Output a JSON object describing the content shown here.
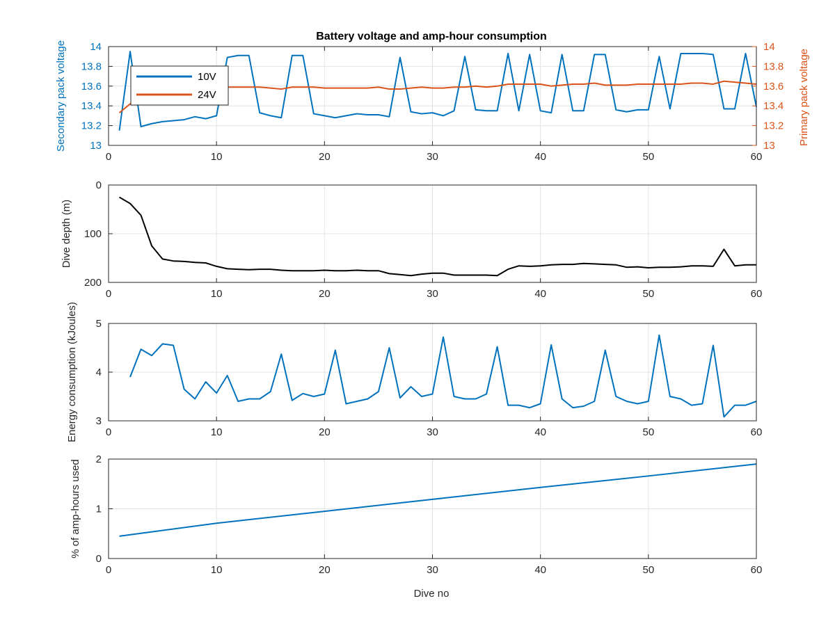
{
  "colors": {
    "blue": "#0072BD",
    "orange": "#D95319",
    "black": "#000000"
  },
  "figure": {
    "title": "Battery voltage and amp-hour consumption",
    "xlabel": "Dive no"
  },
  "chart_data": [
    {
      "type": "line",
      "title": "Battery voltage and amp-hour consumption",
      "xlabel": "",
      "ylabel": "Secondary pack voltage",
      "ylabel_right": "Primary pack voltage",
      "xlim": [
        0,
        60
      ],
      "ylim": [
        13,
        14
      ],
      "ylim_right": [
        13,
        14
      ],
      "xticks": [
        0,
        10,
        20,
        30,
        40,
        50,
        60
      ],
      "yticks": [
        13,
        13.2,
        13.4,
        13.6,
        13.8,
        14
      ],
      "yticks_right": [
        13,
        13.2,
        13.4,
        13.6,
        13.8,
        14
      ],
      "grid": true,
      "legend_position": "top-left",
      "series": [
        {
          "name": "10V",
          "axis": "left",
          "color": "#0072BD",
          "x": [
            1,
            2,
            3,
            4,
            5,
            6,
            7,
            8,
            9,
            10,
            11,
            12,
            13,
            14,
            15,
            16,
            17,
            18,
            19,
            20,
            21,
            22,
            23,
            24,
            25,
            26,
            27,
            28,
            29,
            30,
            31,
            32,
            33,
            34,
            35,
            36,
            37,
            38,
            39,
            40,
            41,
            42,
            43,
            44,
            45,
            46,
            47,
            48,
            49,
            50,
            51,
            52,
            53,
            54,
            55,
            56,
            57,
            58,
            59,
            60
          ],
          "values": [
            13.15,
            13.95,
            13.19,
            13.22,
            13.24,
            13.25,
            13.26,
            13.29,
            13.27,
            13.3,
            13.89,
            13.91,
            13.91,
            13.33,
            13.3,
            13.28,
            13.91,
            13.91,
            13.32,
            13.3,
            13.28,
            13.3,
            13.32,
            13.31,
            13.31,
            13.29,
            13.89,
            13.34,
            13.32,
            13.33,
            13.3,
            13.35,
            13.9,
            13.36,
            13.35,
            13.35,
            13.93,
            13.35,
            13.92,
            13.35,
            13.33,
            13.92,
            13.35,
            13.35,
            13.92,
            13.92,
            13.36,
            13.34,
            13.36,
            13.36,
            13.9,
            13.37,
            13.93,
            13.93,
            13.93,
            13.92,
            13.37,
            13.37,
            13.93,
            13.39
          ]
        },
        {
          "name": "24V",
          "axis": "right",
          "color": "#D95319",
          "x": [
            1,
            2,
            3,
            4,
            5,
            6,
            7,
            8,
            9,
            10,
            11,
            12,
            13,
            14,
            15,
            16,
            17,
            18,
            19,
            20,
            21,
            22,
            23,
            24,
            25,
            26,
            27,
            28,
            29,
            30,
            31,
            32,
            33,
            34,
            35,
            36,
            37,
            38,
            39,
            40,
            41,
            42,
            43,
            44,
            45,
            46,
            47,
            48,
            49,
            50,
            51,
            52,
            53,
            54,
            55,
            56,
            57,
            58,
            59,
            60
          ],
          "values": [
            13.33,
            13.42,
            13.5,
            13.54,
            13.56,
            13.57,
            13.57,
            13.57,
            13.58,
            13.58,
            13.59,
            13.59,
            13.59,
            13.59,
            13.58,
            13.57,
            13.59,
            13.59,
            13.59,
            13.58,
            13.58,
            13.58,
            13.58,
            13.58,
            13.59,
            13.57,
            13.57,
            13.58,
            13.59,
            13.58,
            13.58,
            13.59,
            13.59,
            13.6,
            13.59,
            13.6,
            13.62,
            13.62,
            13.62,
            13.62,
            13.6,
            13.61,
            13.62,
            13.62,
            13.63,
            13.61,
            13.61,
            13.61,
            13.62,
            13.62,
            13.62,
            13.62,
            13.62,
            13.63,
            13.63,
            13.62,
            13.65,
            13.64,
            13.63,
            13.62
          ]
        }
      ]
    },
    {
      "type": "line",
      "xlabel": "",
      "ylabel": "Dive depth (m)",
      "xlim": [
        0,
        60
      ],
      "ylim": [
        0,
        200
      ],
      "y_reversed": true,
      "xticks": [
        0,
        10,
        20,
        30,
        40,
        50,
        60
      ],
      "yticks": [
        0,
        100,
        200
      ],
      "grid": true,
      "series": [
        {
          "color": "#000000",
          "x": [
            1,
            2,
            3,
            4,
            5,
            6,
            7,
            8,
            9,
            10,
            11,
            12,
            13,
            14,
            15,
            16,
            17,
            18,
            19,
            20,
            21,
            22,
            23,
            24,
            25,
            26,
            27,
            28,
            29,
            30,
            31,
            32,
            33,
            34,
            35,
            36,
            37,
            38,
            39,
            40,
            41,
            42,
            43,
            44,
            45,
            46,
            47,
            48,
            49,
            50,
            51,
            52,
            53,
            54,
            55,
            56,
            57,
            58,
            59,
            60
          ],
          "values": [
            25,
            38,
            62,
            125,
            152,
            156,
            157,
            159,
            160,
            167,
            172,
            173,
            174,
            173,
            173,
            175,
            176,
            176,
            176,
            175,
            176,
            176,
            175,
            176,
            176,
            182,
            184,
            186,
            183,
            181,
            181,
            185,
            185,
            185,
            185,
            186,
            173,
            166,
            167,
            166,
            164,
            163,
            163,
            161,
            162,
            163,
            164,
            169,
            168,
            170,
            169,
            169,
            168,
            166,
            166,
            167,
            132,
            166,
            164,
            164
          ]
        }
      ]
    },
    {
      "type": "line",
      "xlabel": "",
      "ylabel": "Energy consumption (kJoules)",
      "xlim": [
        0,
        60
      ],
      "ylim": [
        3,
        5
      ],
      "xticks": [
        0,
        10,
        20,
        30,
        40,
        50,
        60
      ],
      "yticks": [
        3,
        4,
        5
      ],
      "grid": true,
      "series": [
        {
          "color": "#0072BD",
          "x": [
            2,
            3,
            4,
            5,
            6,
            7,
            8,
            9,
            10,
            11,
            12,
            13,
            14,
            15,
            16,
            17,
            18,
            19,
            20,
            21,
            22,
            23,
            24,
            25,
            26,
            27,
            28,
            29,
            30,
            31,
            32,
            33,
            34,
            35,
            36,
            37,
            38,
            39,
            40,
            41,
            42,
            43,
            44,
            45,
            46,
            47,
            48,
            49,
            50,
            51,
            52,
            53,
            54,
            55,
            56,
            57,
            58,
            59,
            60
          ],
          "values": [
            3.9,
            4.47,
            4.34,
            4.58,
            4.55,
            3.65,
            3.45,
            3.8,
            3.57,
            3.93,
            3.4,
            3.45,
            3.45,
            3.6,
            4.37,
            3.42,
            3.56,
            3.5,
            3.55,
            4.45,
            3.35,
            3.4,
            3.45,
            3.6,
            4.5,
            3.47,
            3.7,
            3.5,
            3.55,
            4.72,
            3.5,
            3.45,
            3.45,
            3.55,
            4.52,
            3.32,
            3.32,
            3.27,
            3.35,
            4.56,
            3.45,
            3.27,
            3.3,
            3.4,
            4.45,
            3.5,
            3.4,
            3.35,
            3.4,
            4.76,
            3.5,
            3.45,
            3.32,
            3.35,
            4.55,
            3.08,
            3.32,
            3.32,
            3.4
          ]
        }
      ]
    },
    {
      "type": "line",
      "xlabel": "Dive no",
      "ylabel": "% of amp-hours used",
      "xlim": [
        0,
        60
      ],
      "ylim": [
        0,
        2
      ],
      "xticks": [
        0,
        10,
        20,
        30,
        40,
        50,
        60
      ],
      "yticks": [
        0,
        1,
        2
      ],
      "grid": true,
      "series": [
        {
          "color": "#0072BD",
          "x": [
            1,
            10,
            20,
            30,
            40,
            50,
            60
          ],
          "values": [
            0.45,
            0.71,
            0.95,
            1.19,
            1.43,
            1.66,
            1.9
          ]
        }
      ]
    }
  ]
}
